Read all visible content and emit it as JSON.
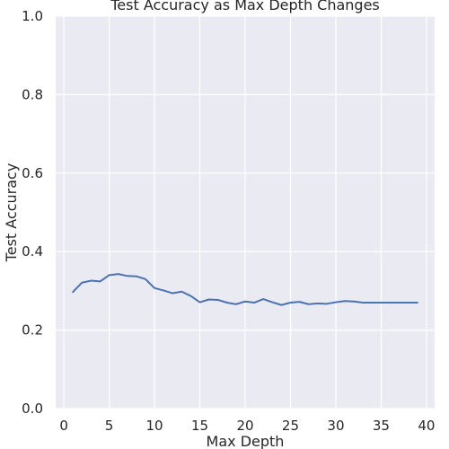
{
  "chart_data": {
    "type": "line",
    "title": "Test Accuracy as Max Depth Changes",
    "xlabel": "Max Depth",
    "ylabel": "Test Accuracy",
    "xlim": [
      -0.9,
      40.9
    ],
    "ylim": [
      0.0,
      1.0
    ],
    "xticks": [
      0,
      5,
      10,
      15,
      20,
      25,
      30,
      35,
      40
    ],
    "yticks": [
      0.0,
      0.2,
      0.4,
      0.6,
      0.8,
      1.0
    ],
    "xtick_labels": [
      "0",
      "5",
      "10",
      "15",
      "20",
      "25",
      "30",
      "35",
      "40"
    ],
    "ytick_labels": [
      "0.0",
      "0.2",
      "0.4",
      "0.6",
      "0.8",
      "1.0"
    ],
    "grid": true,
    "background_color": "#eaeaf2",
    "grid_color": "#ffffff",
    "series": [
      {
        "color": "#4c72b0",
        "x": [
          1,
          2,
          3,
          4,
          5,
          6,
          7,
          8,
          9,
          10,
          11,
          12,
          13,
          14,
          15,
          16,
          17,
          18,
          19,
          20,
          21,
          22,
          23,
          24,
          25,
          26,
          27,
          28,
          29,
          30,
          31,
          32,
          33,
          34,
          35,
          36,
          37,
          38,
          39
        ],
        "y": [
          0.297,
          0.321,
          0.326,
          0.324,
          0.34,
          0.343,
          0.338,
          0.337,
          0.33,
          0.307,
          0.301,
          0.294,
          0.298,
          0.287,
          0.271,
          0.278,
          0.277,
          0.27,
          0.266,
          0.273,
          0.27,
          0.279,
          0.271,
          0.264,
          0.27,
          0.272,
          0.266,
          0.268,
          0.267,
          0.271,
          0.274,
          0.273,
          0.27,
          0.27,
          0.27,
          0.27,
          0.27,
          0.27,
          0.27
        ]
      }
    ]
  }
}
